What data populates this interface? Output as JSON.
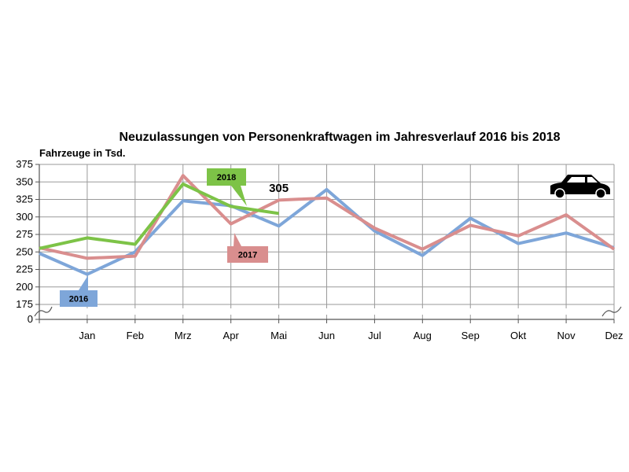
{
  "chart_data": {
    "type": "line",
    "title": "Neuzulassungen von Personenkraftwagen im Jahresverlauf 2016 bis 2018",
    "ylabel": "Fahrzeuge in Tsd.",
    "xlabel": "",
    "categories": [
      "",
      "Jan",
      "Feb",
      "Mrz",
      "Apr",
      "Mai",
      "Jun",
      "Jul",
      "Aug",
      "Sep",
      "Okt",
      "Nov",
      "Dez"
    ],
    "y_ticks": [
      0,
      175,
      200,
      225,
      250,
      275,
      300,
      325,
      350,
      375
    ],
    "ylim": [
      175,
      375
    ],
    "axis_break": "between 0 and 175",
    "grid": true,
    "series": [
      {
        "name": "2016",
        "color": "#7ea6d9",
        "values": [
          248,
          218,
          250,
          323,
          316,
          287,
          339,
          280,
          245,
          298,
          262,
          277,
          256
        ]
      },
      {
        "name": "2017",
        "color": "#d98e8e",
        "values": [
          256,
          241,
          244,
          359,
          290,
          324,
          327,
          284,
          254,
          288,
          273,
          303,
          254
        ]
      },
      {
        "name": "2018",
        "color": "#7dc347",
        "values": [
          255,
          270,
          261,
          347,
          315,
          305,
          null,
          null,
          null,
          null,
          null,
          null,
          null
        ]
      }
    ],
    "annotations": [
      {
        "text": "305",
        "series": "2018",
        "category": "Mai"
      }
    ],
    "icon": "car-icon"
  }
}
